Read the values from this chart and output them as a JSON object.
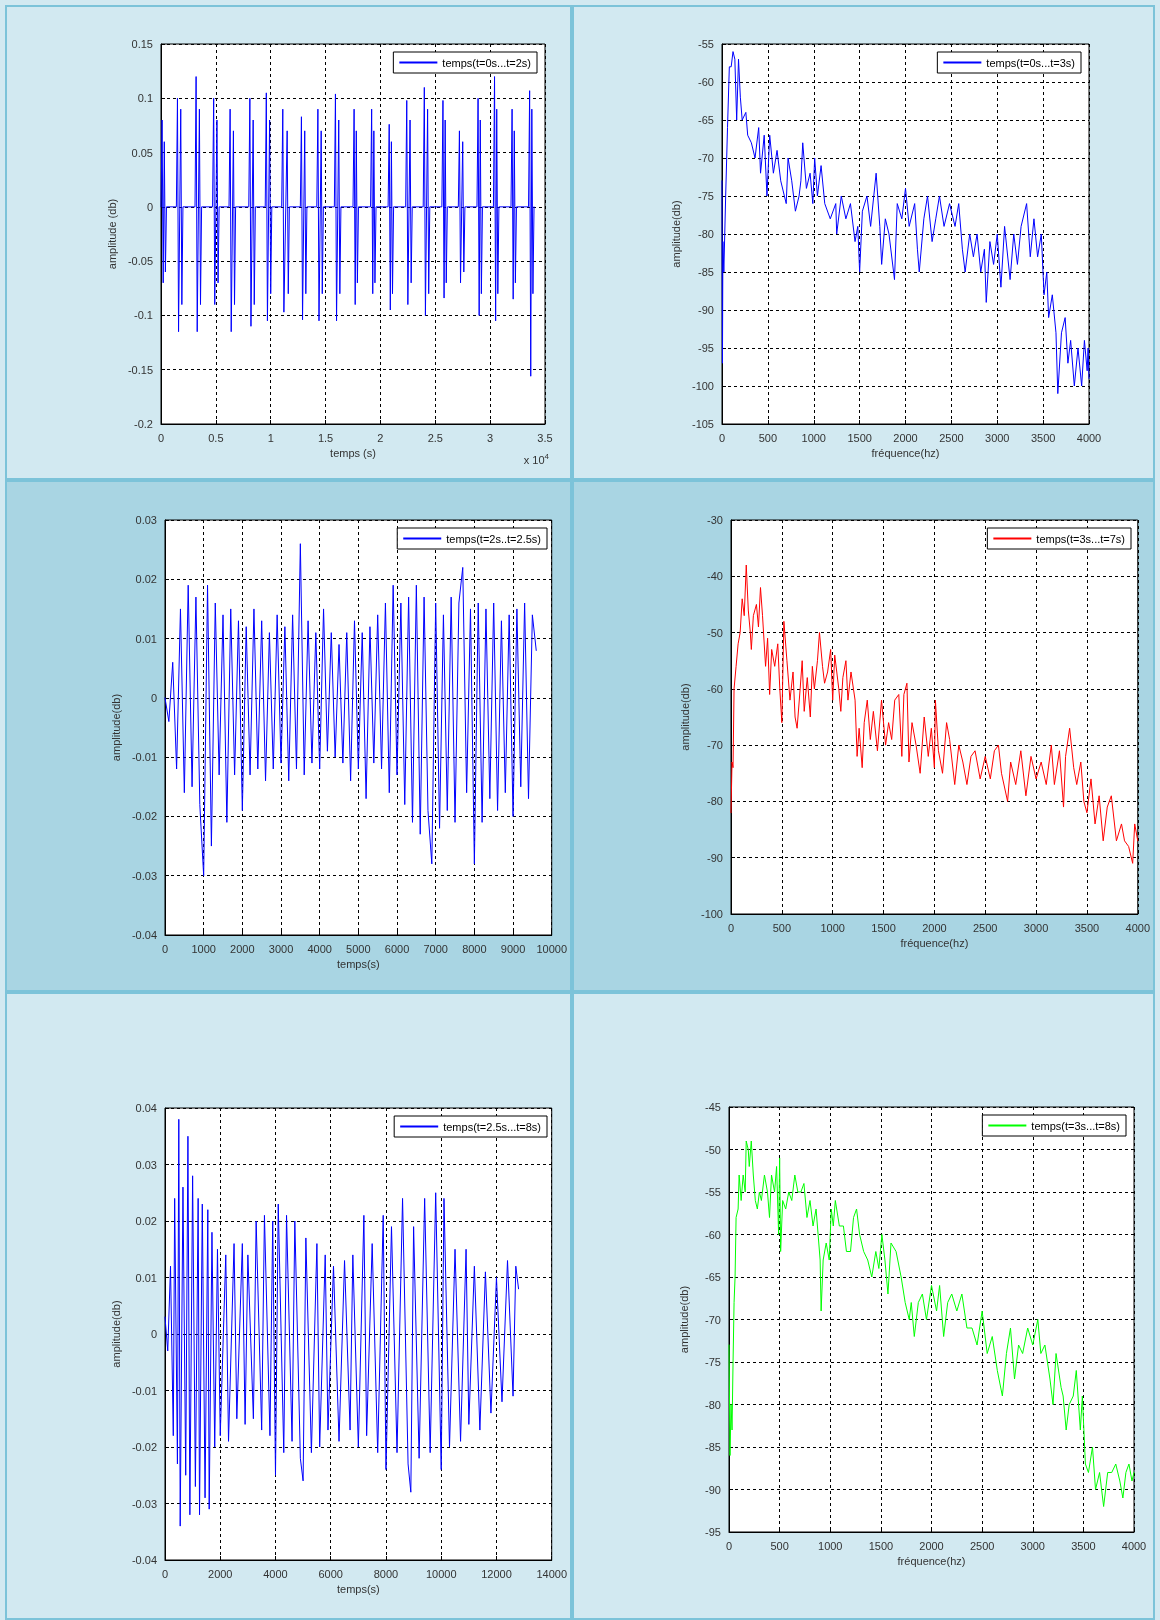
{
  "chart_data": [
    {
      "type": "line",
      "xlabel": "temps (s)",
      "ylabel": "amplitude (db)",
      "annotations": [
        "x 10$^{4}$"
      ],
      "grid": true,
      "legend": "top right",
      "x": [
        0,
        0.01,
        0.02,
        0.03,
        0.04,
        0.05,
        0.14,
        0.15,
        0.16,
        0.18,
        0.19,
        0.2,
        0.31,
        0.32,
        0.33,
        0.35,
        0.36,
        0.37,
        0.47,
        0.48,
        0.49,
        0.51,
        0.52,
        0.53,
        0.62,
        0.63,
        0.64,
        0.66,
        0.67,
        0.68,
        0.8,
        0.81,
        0.82,
        0.84,
        0.85,
        0.86,
        0.95,
        0.96,
        0.97,
        0.99,
        1,
        1.01,
        1.1,
        1.11,
        1.12,
        1.15,
        1.16,
        1.17,
        1.27,
        1.28,
        1.29,
        1.31,
        1.32,
        1.33,
        1.42,
        1.43,
        1.44,
        1.46,
        1.47,
        1.48,
        1.58,
        1.59,
        1.6,
        1.62,
        1.63,
        1.64,
        1.75,
        1.76,
        1.77,
        1.78,
        1.79,
        1.8,
        1.91,
        1.92,
        1.93,
        1.94,
        1.95,
        1.96,
        2.07,
        2.08,
        2.09,
        2.1,
        2.11,
        2.12,
        2.23,
        2.24,
        2.25,
        2.27,
        2.28,
        2.29,
        2.39,
        2.4,
        2.41,
        2.43,
        2.44,
        2.45,
        2.56,
        2.57,
        2.58,
        2.59,
        2.6,
        2.61,
        2.71,
        2.72,
        2.73,
        2.75,
        2.76,
        2.77,
        2.88,
        2.89,
        2.9,
        2.91,
        2.92,
        2.93,
        3.03,
        3.04,
        3.05,
        3.06,
        3.07,
        3.08,
        3.19,
        3.2,
        3.21,
        3.22,
        3.23,
        3.24,
        3.35,
        3.36,
        3.37,
        3.38,
        3.39,
        3.4
      ],
      "series": [
        {
          "name": "temps(t=0s...t=2s)",
          "color": "#0000ff",
          "values": [
            0,
            0.08,
            -0.07,
            0.06,
            -0.06,
            0,
            0,
            0.1,
            -0.115,
            0.09,
            -0.09,
            0,
            0,
            0.12,
            -0.115,
            0.09,
            -0.09,
            0,
            0,
            0.1,
            -0.09,
            0.08,
            -0.07,
            0,
            0,
            0.09,
            -0.115,
            0.07,
            -0.09,
            0,
            0,
            0.1,
            -0.11,
            0.08,
            -0.09,
            0,
            0,
            0.105,
            -0.105,
            0.08,
            -0.08,
            0,
            0,
            0.09,
            -0.097,
            0.07,
            -0.08,
            0,
            0,
            0.083,
            -0.104,
            0.07,
            -0.08,
            0,
            0,
            0.09,
            -0.105,
            0.07,
            -0.08,
            0,
            0,
            0.104,
            -0.105,
            0.08,
            -0.08,
            0,
            0,
            0.09,
            -0.09,
            0.07,
            -0.07,
            0,
            0,
            0.09,
            -0.08,
            0.07,
            -0.07,
            0,
            0,
            0.076,
            -0.095,
            0.06,
            -0.08,
            0,
            0,
            0.098,
            -0.09,
            0.08,
            -0.07,
            0,
            0,
            0.11,
            -0.1,
            0.09,
            -0.08,
            0,
            0,
            0.098,
            -0.084,
            0.08,
            -0.07,
            0,
            0,
            0.07,
            -0.07,
            0.06,
            -0.06,
            0,
            0,
            0.1,
            -0.1,
            0.08,
            -0.08,
            0,
            0,
            0.12,
            -0.105,
            0.09,
            -0.08,
            0,
            0,
            0.09,
            -0.085,
            0.07,
            -0.07,
            0,
            0,
            0.107,
            -0.156,
            0.09,
            -0.08,
            0
          ]
        }
      ],
      "xlim": [
        0,
        3.5
      ],
      "ylim": [
        -0.2,
        0.15
      ],
      "xticks": [
        0,
        0.5,
        1,
        1.5,
        2,
        2.5,
        3,
        3.5
      ],
      "yticks": [
        -0.2,
        -0.15,
        -0.1,
        -0.05,
        0,
        0.05,
        0.1,
        0.15
      ]
    },
    {
      "type": "line",
      "xlabel": "fréquence(hz)",
      "ylabel": "amplitude(db)",
      "grid": true,
      "legend": "top right",
      "x": [
        0,
        5,
        10,
        20,
        40,
        60,
        80,
        100,
        120,
        140,
        160,
        180,
        200,
        220,
        260,
        280,
        320,
        360,
        400,
        420,
        460,
        490,
        520,
        560,
        600,
        640,
        700,
        720,
        760,
        800,
        840,
        860,
        880,
        920,
        960,
        990,
        1010,
        1040,
        1080,
        1120,
        1180,
        1240,
        1250,
        1300,
        1350,
        1400,
        1450,
        1480,
        1500,
        1530,
        1580,
        1620,
        1680,
        1720,
        1740,
        1780,
        1820,
        1880,
        1910,
        1960,
        2000,
        2040,
        2100,
        2130,
        2150,
        2200,
        2240,
        2290,
        2330,
        2370,
        2420,
        2480,
        2540,
        2580,
        2620,
        2650,
        2700,
        2740,
        2780,
        2820,
        2860,
        2880,
        2920,
        2960,
        3000,
        3040,
        3080,
        3140,
        3180,
        3220,
        3260,
        3320,
        3360,
        3400,
        3440,
        3480,
        3510,
        3540,
        3560,
        3600,
        3640,
        3660,
        3700,
        3740,
        3770,
        3800,
        3840,
        3880,
        3920,
        3950,
        3980,
        3990,
        4000
      ],
      "series": [
        {
          "name": "temps(t=0s...t=3s)",
          "color": "#0000ff",
          "values": [
            -73,
            -97,
            -81,
            -85,
            -75,
            -66,
            -58,
            -58,
            -56,
            -57,
            -65,
            -57,
            -62,
            -65,
            -64,
            -67,
            -68,
            -70,
            -66,
            -72,
            -67,
            -75,
            -67,
            -72,
            -69,
            -73,
            -76,
            -70,
            -73,
            -77,
            -75,
            -73,
            -68,
            -74,
            -72,
            -76,
            -70,
            -75,
            -71,
            -76,
            -78,
            -76,
            -80,
            -75,
            -78,
            -76,
            -81,
            -79,
            -85,
            -77,
            -75,
            -79,
            -72,
            -79,
            -84,
            -78,
            -80,
            -86,
            -76,
            -78,
            -74,
            -79,
            -76,
            -82,
            -85,
            -78,
            -75,
            -81,
            -78,
            -75,
            -79,
            -76,
            -79,
            -76,
            -82,
            -85,
            -80,
            -83,
            -80,
            -85,
            -82,
            -89,
            -81,
            -84,
            -80,
            -87,
            -79,
            -86,
            -80,
            -84,
            -79,
            -76,
            -83,
            -78,
            -83,
            -80,
            -88,
            -85,
            -91,
            -88,
            -93,
            -101,
            -93,
            -91,
            -97,
            -94,
            -100,
            -95,
            -100,
            -94,
            -98,
            -95,
            -99
          ]
        }
      ],
      "xlim": [
        0,
        4000
      ],
      "ylim": [
        -105,
        -55
      ],
      "xticks": [
        0,
        500,
        1000,
        1500,
        2000,
        2500,
        3000,
        3500,
        4000
      ],
      "yticks": [
        -105,
        -100,
        -95,
        -90,
        -85,
        -80,
        -75,
        -70,
        -65,
        -60,
        -55
      ]
    },
    {
      "type": "line",
      "xlabel": "temps(s)",
      "ylabel": "amplitude(db)",
      "grid": true,
      "legend": "top right",
      "x": [
        0,
        100,
        200,
        300,
        400,
        500,
        600,
        700,
        800,
        900,
        1000,
        1100,
        1200,
        1300,
        1400,
        1500,
        1600,
        1700,
        1800,
        1900,
        2000,
        2100,
        2200,
        2300,
        2400,
        2500,
        2600,
        2700,
        2800,
        2900,
        3000,
        3100,
        3200,
        3300,
        3400,
        3500,
        3600,
        3700,
        3800,
        3900,
        4000,
        4100,
        4200,
        4300,
        4400,
        4500,
        4600,
        4700,
        4800,
        4900,
        5000,
        5100,
        5200,
        5300,
        5400,
        5500,
        5600,
        5700,
        5800,
        5900,
        6000,
        6100,
        6200,
        6300,
        6400,
        6500,
        6600,
        6700,
        6800,
        6900,
        7000,
        7100,
        7200,
        7300,
        7400,
        7500,
        7600,
        7700,
        7800,
        7900,
        8000,
        8100,
        8200,
        8300,
        8400,
        8500,
        8600,
        8700,
        8800,
        8900,
        9000,
        9100,
        9200,
        9300,
        9400,
        9500,
        9600
      ],
      "series": [
        {
          "name": "temps(t=2s..t=2.5s)",
          "color": "#0000ff",
          "values": [
            0,
            -0.004,
            0.006,
            -0.012,
            0.015,
            -0.016,
            0.019,
            -0.015,
            0.017,
            -0.018,
            -0.03,
            0.019,
            -0.025,
            0.016,
            -0.013,
            0.014,
            -0.021,
            0.015,
            -0.013,
            0.013,
            -0.019,
            0.012,
            -0.013,
            0.015,
            -0.012,
            0.013,
            -0.014,
            0.011,
            -0.012,
            0.014,
            -0.011,
            0.012,
            -0.014,
            0.014,
            -0.012,
            0.026,
            -0.013,
            0.013,
            -0.011,
            0.011,
            -0.012,
            0.015,
            -0.009,
            0.011,
            -0.01,
            0.009,
            -0.011,
            0.011,
            -0.014,
            0.013,
            -0.012,
            0.011,
            -0.017,
            0.012,
            -0.011,
            0.014,
            -0.012,
            0.016,
            -0.016,
            0.019,
            -0.013,
            0.016,
            -0.018,
            0.017,
            -0.021,
            0.019,
            -0.023,
            0.017,
            -0.019,
            -0.028,
            0.016,
            -0.022,
            0.014,
            -0.019,
            0.017,
            -0.021,
            0.016,
            0.022,
            -0.016,
            0.015,
            -0.028,
            0.016,
            -0.021,
            0.015,
            -0.017,
            0.016,
            -0.019,
            0.013,
            -0.016,
            0.014,
            -0.02,
            0.015,
            -0.015,
            0.016,
            -0.017,
            0.014,
            0.008
          ]
        }
      ],
      "xlim": [
        0,
        10000
      ],
      "ylim": [
        -0.04,
        0.03
      ],
      "xticks": [
        0,
        1000,
        2000,
        3000,
        4000,
        5000,
        6000,
        7000,
        8000,
        9000,
        10000
      ],
      "yticks": [
        -0.04,
        -0.03,
        -0.02,
        -0.01,
        0,
        0.01,
        0.02,
        0.03
      ]
    },
    {
      "type": "line",
      "xlabel": "fréquence(hz)",
      "ylabel": "amplitude(db)",
      "grid": true,
      "legend": "top right",
      "x": [
        0,
        10,
        20,
        30,
        50,
        70,
        90,
        110,
        130,
        150,
        170,
        190,
        200,
        220,
        250,
        270,
        290,
        310,
        340,
        360,
        380,
        400,
        430,
        460,
        480,
        500,
        520,
        550,
        580,
        610,
        630,
        650,
        680,
        700,
        720,
        750,
        780,
        800,
        820,
        850,
        870,
        900,
        920,
        950,
        980,
        1000,
        1020,
        1060,
        1080,
        1100,
        1130,
        1150,
        1180,
        1220,
        1240,
        1260,
        1290,
        1310,
        1340,
        1370,
        1400,
        1440,
        1480,
        1520,
        1550,
        1580,
        1610,
        1650,
        1680,
        1700,
        1730,
        1750,
        1780,
        1820,
        1860,
        1900,
        1940,
        1970,
        2000,
        2010,
        2040,
        2080,
        2120,
        2150,
        2200,
        2240,
        2280,
        2320,
        2360,
        2400,
        2450,
        2500,
        2550,
        2590,
        2630,
        2660,
        2720,
        2750,
        2800,
        2850,
        2900,
        2950,
        3000,
        3050,
        3100,
        3150,
        3180,
        3230,
        3270,
        3290,
        3330,
        3370,
        3400,
        3440,
        3470,
        3500,
        3540,
        3580,
        3620,
        3660,
        3700,
        3740,
        3790,
        3840,
        3870,
        3910,
        3950,
        3970,
        4000
      ],
      "series": [
        {
          "name": "temps(t=3s...t=7s)",
          "color": "#ff0000",
          "values": [
            -82,
            -73,
            -74,
            -60,
            -56,
            -52,
            -50,
            -44,
            -47,
            -38,
            -46,
            -50,
            -53,
            -47,
            -45,
            -49,
            -42,
            -47,
            -56,
            -51,
            -61,
            -53,
            -56,
            -52,
            -60,
            -66,
            -48,
            -55,
            -62,
            -57,
            -65,
            -67,
            -60,
            -55,
            -64,
            -58,
            -65,
            -56,
            -60,
            -55,
            -50,
            -56,
            -59,
            -57,
            -53,
            -62,
            -54,
            -60,
            -64,
            -58,
            -55,
            -62,
            -57,
            -62,
            -72,
            -67,
            -74,
            -66,
            -62,
            -69,
            -64,
            -71,
            -62,
            -70,
            -66,
            -69,
            -62,
            -61,
            -72,
            -61,
            -59,
            -73,
            -66,
            -70,
            -75,
            -65,
            -72,
            -67,
            -74,
            -62,
            -71,
            -75,
            -66,
            -69,
            -77,
            -70,
            -73,
            -77,
            -72,
            -71,
            -76,
            -72,
            -76,
            -71,
            -70,
            -75,
            -80,
            -73,
            -77,
            -71,
            -79,
            -72,
            -76,
            -73,
            -77,
            -70,
            -77,
            -71,
            -81,
            -72,
            -67,
            -74,
            -77,
            -73,
            -80,
            -82,
            -76,
            -84,
            -79,
            -87,
            -81,
            -79,
            -87,
            -84,
            -87,
            -88,
            -91,
            -84,
            -87
          ]
        }
      ],
      "xlim": [
        0,
        4000
      ],
      "ylim": [
        -100,
        -30
      ],
      "xticks": [
        0,
        500,
        1000,
        1500,
        2000,
        2500,
        3000,
        3500,
        4000
      ],
      "yticks": [
        -100,
        -90,
        -80,
        -70,
        -60,
        -50,
        -40,
        -30
      ]
    },
    {
      "type": "line",
      "xlabel": "temps(s)",
      "ylabel": "amplitude(db)",
      "grid": true,
      "legend": "top right",
      "x": [
        0,
        100,
        200,
        300,
        350,
        450,
        500,
        550,
        650,
        750,
        830,
        900,
        1000,
        1100,
        1200,
        1250,
        1350,
        1450,
        1550,
        1600,
        1700,
        1800,
        1900,
        2000,
        2200,
        2300,
        2500,
        2600,
        2800,
        2900,
        3000,
        3200,
        3300,
        3500,
        3600,
        3800,
        3900,
        4000,
        4100,
        4300,
        4400,
        4600,
        4700,
        4900,
        5000,
        5100,
        5300,
        5500,
        5600,
        5800,
        5900,
        6100,
        6300,
        6500,
        6700,
        6800,
        7000,
        7200,
        7300,
        7500,
        7700,
        7900,
        8000,
        8200,
        8400,
        8600,
        8800,
        8900,
        9000,
        9200,
        9400,
        9600,
        9800,
        10000,
        10100,
        10300,
        10500,
        10700,
        10900,
        11000,
        11200,
        11400,
        11600,
        11800,
        12000,
        12200,
        12400,
        12600,
        12700,
        12800
      ],
      "series": [
        {
          "name": "temps(t=2.5s...t=8s)",
          "color": "#0000ff",
          "values": [
            0.003,
            -0.003,
            0.012,
            -0.018,
            0.024,
            -0.023,
            0.038,
            -0.034,
            0.026,
            -0.025,
            0.035,
            -0.032,
            0.028,
            -0.027,
            0.024,
            -0.032,
            0.023,
            -0.029,
            0.022,
            -0.031,
            0.018,
            -0.02,
            0.015,
            -0.018,
            0.014,
            -0.019,
            0.016,
            -0.015,
            0.016,
            -0.016,
            0.014,
            -0.015,
            0.02,
            -0.017,
            0.021,
            -0.018,
            0.02,
            -0.025,
            0.023,
            -0.021,
            0.021,
            -0.019,
            0.02,
            -0.022,
            -0.026,
            0.017,
            -0.021,
            0.016,
            -0.02,
            0.014,
            -0.017,
            0.012,
            -0.019,
            0.013,
            -0.017,
            0.014,
            -0.02,
            0.021,
            -0.018,
            0.016,
            -0.021,
            0.021,
            -0.024,
            0.019,
            -0.021,
            0.024,
            -0.023,
            -0.028,
            0.019,
            -0.022,
            0.024,
            -0.021,
            0.025,
            -0.024,
            0.024,
            -0.02,
            0.015,
            -0.019,
            0.015,
            -0.016,
            0.012,
            -0.017,
            0.011,
            -0.014,
            0.01,
            -0.012,
            0.013,
            -0.011,
            0.012,
            0.008
          ]
        }
      ],
      "xlim": [
        0,
        14000
      ],
      "ylim": [
        -0.04,
        0.04
      ],
      "xticks": [
        0,
        2000,
        4000,
        6000,
        8000,
        10000,
        12000,
        14000
      ],
      "yticks": [
        -0.04,
        -0.03,
        -0.02,
        -0.01,
        0,
        0.01,
        0.02,
        0.03,
        0.04
      ]
    },
    {
      "type": "line",
      "xlabel": "fréquence(hz)",
      "ylabel": "amplitude(db)",
      "grid": true,
      "legend": "top right",
      "x": [
        0,
        10,
        20,
        30,
        40,
        50,
        60,
        70,
        90,
        100,
        120,
        140,
        160,
        170,
        190,
        200,
        220,
        240,
        260,
        280,
        300,
        320,
        350,
        380,
        400,
        420,
        450,
        470,
        490,
        500,
        510,
        530,
        560,
        590,
        620,
        650,
        680,
        710,
        740,
        770,
        800,
        830,
        860,
        880,
        900,
        910,
        930,
        960,
        990,
        1010,
        1030,
        1050,
        1090,
        1130,
        1160,
        1200,
        1230,
        1260,
        1290,
        1330,
        1370,
        1410,
        1450,
        1480,
        1510,
        1540,
        1570,
        1600,
        1650,
        1700,
        1740,
        1780,
        1800,
        1830,
        1870,
        1910,
        1950,
        2000,
        2050,
        2080,
        2120,
        2160,
        2200,
        2250,
        2300,
        2350,
        2400,
        2450,
        2500,
        2550,
        2600,
        2650,
        2700,
        2740,
        2780,
        2820,
        2860,
        2900,
        2950,
        3000,
        3050,
        3080,
        3120,
        3170,
        3200,
        3230,
        3280,
        3300,
        3330,
        3360,
        3400,
        3430,
        3470,
        3490,
        3520,
        3550,
        3590,
        3620,
        3660,
        3700,
        3740,
        3780,
        3820,
        3860,
        3890,
        3920,
        3950,
        3980,
        4000
      ],
      "series": [
        {
          "name": "temps(t=3s...t=8s)",
          "color": "#00ff00",
          "values": [
            -73,
            -86,
            -80,
            -83,
            -75,
            -68,
            -65,
            -58,
            -57,
            -53,
            -56,
            -53,
            -55,
            -49,
            -50,
            -52,
            -49,
            -53,
            -56,
            -57,
            -55,
            -56,
            -53,
            -55,
            -58,
            -53,
            -55,
            -52,
            -60,
            -51,
            -62,
            -56,
            -57,
            -55,
            -56,
            -53,
            -55,
            -55,
            -54,
            -58,
            -56,
            -59,
            -57,
            -60,
            -63,
            -69,
            -63,
            -61,
            -63,
            -57,
            -59,
            -56,
            -59,
            -59,
            -62,
            -62,
            -58,
            -57,
            -60,
            -62,
            -63,
            -65,
            -62,
            -64,
            -60,
            -63,
            -67,
            -61,
            -62,
            -65,
            -68,
            -70,
            -68,
            -72,
            -68,
            -67,
            -70,
            -66,
            -69,
            -66,
            -72,
            -68,
            -67,
            -69,
            -67,
            -71,
            -71,
            -73,
            -69,
            -74,
            -72,
            -76,
            -79,
            -74,
            -71,
            -77,
            -73,
            -74,
            -71,
            -73,
            -70,
            -74,
            -73,
            -77,
            -80,
            -74,
            -78,
            -79,
            -83,
            -80,
            -79,
            -76,
            -83,
            -79,
            -87,
            -88,
            -85,
            -90,
            -88,
            -92,
            -88,
            -88,
            -87,
            -89,
            -91,
            -88,
            -87,
            -89,
            -88
          ]
        }
      ],
      "xlim": [
        0,
        4000
      ],
      "ylim": [
        -95,
        -45
      ],
      "xticks": [
        0,
        500,
        1000,
        1500,
        2000,
        2500,
        3000,
        3500,
        4000
      ],
      "yticks": [
        -95,
        -90,
        -85,
        -80,
        -75,
        -70,
        -65,
        -60,
        -55,
        -50,
        -45
      ]
    }
  ]
}
